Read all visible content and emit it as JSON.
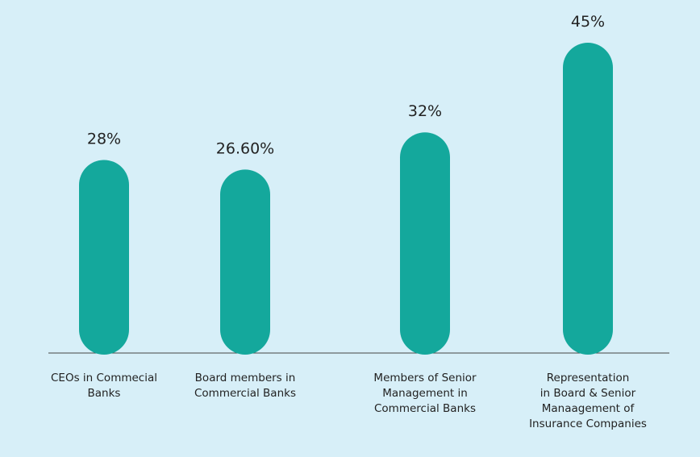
{
  "chart_data": {
    "type": "bar",
    "categories": [
      "CEOs in Commecial\nBanks",
      "Board members in\nCommercial Banks",
      "Members of Senior\nManagement in\nCommercial Banks",
      "Representation\nin Board & Senior\nManaagement of\nInsurance Companies"
    ],
    "values": [
      28,
      26.6,
      32,
      45
    ],
    "value_labels": [
      "28%",
      "26.60%",
      "32%",
      "45%"
    ],
    "color": "#14a89c",
    "ylim": [
      0,
      45
    ]
  }
}
